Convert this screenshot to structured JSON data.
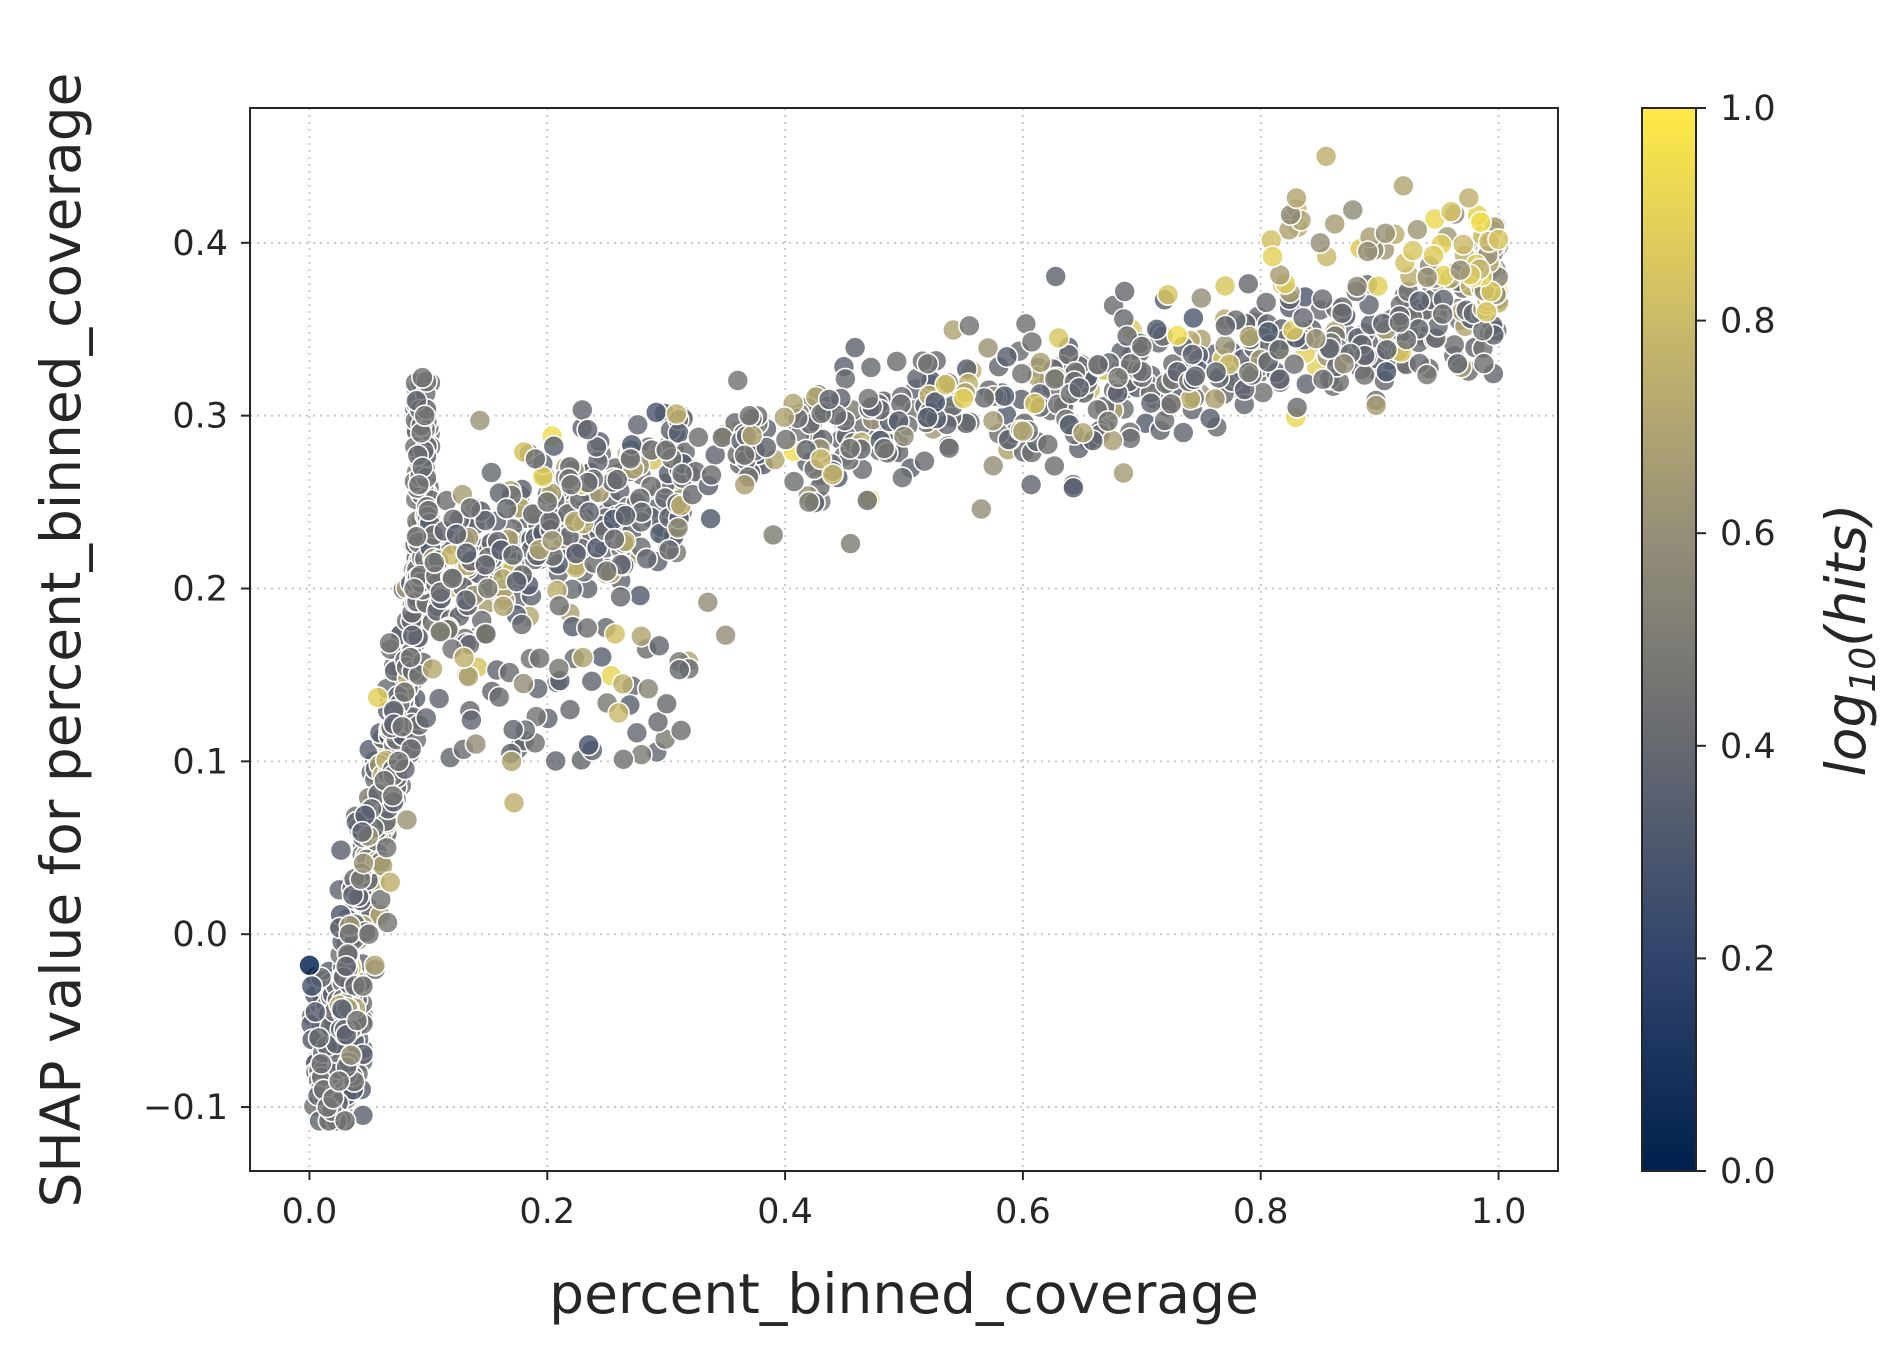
{
  "chart_data": {
    "type": "scatter",
    "title": "",
    "xlabel": "percent_binned_coverage",
    "ylabel": "SHAP value for percent_binned_coverage",
    "xlim": [
      -0.05,
      1.05
    ],
    "ylim": [
      -0.137,
      0.478
    ],
    "x_ticks": [
      "0.0",
      "0.2",
      "0.4",
      "0.6",
      "0.8",
      "1.0"
    ],
    "y_ticks": [
      "−0.1",
      "0.0",
      "0.1",
      "0.2",
      "0.3",
      "0.4"
    ],
    "grid": true,
    "grid_style": "dotted",
    "colorbar": {
      "label_base": "log",
      "label_sub": "10",
      "label_var": "hits",
      "range": [
        0.0,
        1.0
      ],
      "ticks": [
        "0.0",
        "0.2",
        "0.4",
        "0.6",
        "0.8",
        "1.0"
      ],
      "colormap_stops": [
        "#00204d",
        "#31446b",
        "#666970",
        "#958f78",
        "#cbba69",
        "#ffea46"
      ]
    },
    "point_edge_color": "#ffffff",
    "cluster_points": [
      [
        0.0,
        -0.018,
        0.0
      ],
      [
        0.002,
        -0.03,
        0.3
      ],
      [
        0.005,
        -0.045,
        0.35
      ],
      [
        0.008,
        -0.06,
        0.4
      ],
      [
        0.01,
        -0.075,
        0.42
      ],
      [
        0.012,
        -0.09,
        0.45
      ],
      [
        0.015,
        -0.1,
        0.45
      ],
      [
        0.02,
        -0.095,
        0.45
      ],
      [
        0.025,
        -0.085,
        0.45
      ],
      [
        0.03,
        -0.108,
        0.45
      ],
      [
        0.035,
        -0.07,
        0.6
      ],
      [
        0.04,
        -0.05,
        0.45
      ],
      [
        0.045,
        -0.03,
        0.45
      ],
      [
        0.05,
        0.0,
        0.45
      ],
      [
        0.055,
        -0.018,
        0.7
      ],
      [
        0.06,
        0.02,
        0.45
      ],
      [
        0.065,
        0.05,
        0.45
      ],
      [
        0.068,
        0.03,
        0.75
      ],
      [
        0.07,
        0.08,
        0.45
      ],
      [
        0.075,
        0.1,
        0.45
      ],
      [
        0.078,
        0.12,
        0.45
      ],
      [
        0.08,
        0.14,
        0.45
      ],
      [
        0.085,
        0.16,
        0.45
      ],
      [
        0.088,
        0.2,
        0.45
      ],
      [
        0.09,
        0.23,
        0.45
      ],
      [
        0.092,
        0.26,
        0.45
      ],
      [
        0.094,
        0.29,
        0.45
      ],
      [
        0.095,
        0.322,
        0.45
      ],
      [
        0.097,
        0.3,
        0.45
      ],
      [
        0.1,
        0.245,
        0.45
      ],
      [
        0.105,
        0.215,
        0.45
      ],
      [
        0.11,
        0.175,
        0.45
      ],
      [
        0.12,
        0.165,
        0.45
      ],
      [
        0.13,
        0.16,
        0.75
      ],
      [
        0.14,
        0.11,
        0.6
      ],
      [
        0.15,
        0.2,
        0.5
      ],
      [
        0.17,
        0.1,
        0.7
      ],
      [
        0.172,
        0.076,
        0.75
      ],
      [
        0.18,
        0.145,
        0.6
      ],
      [
        0.19,
        0.275,
        0.45
      ],
      [
        0.2,
        0.25,
        0.45
      ],
      [
        0.21,
        0.19,
        0.45
      ],
      [
        0.22,
        0.26,
        0.45
      ],
      [
        0.23,
        0.16,
        0.7
      ],
      [
        0.25,
        0.21,
        0.45
      ],
      [
        0.26,
        0.128,
        0.8
      ],
      [
        0.27,
        0.275,
        0.45
      ],
      [
        0.285,
        0.142,
        0.55
      ],
      [
        0.3,
        0.28,
        0.45
      ],
      [
        0.31,
        0.235,
        0.6
      ],
      [
        0.335,
        0.192,
        0.6
      ],
      [
        0.35,
        0.173,
        0.6
      ],
      [
        0.37,
        0.3,
        0.45
      ],
      [
        0.39,
        0.231,
        0.5
      ],
      [
        0.42,
        0.25,
        0.5
      ],
      [
        0.43,
        0.275,
        0.8
      ],
      [
        0.44,
        0.266,
        0.8
      ],
      [
        0.455,
        0.226,
        0.5
      ],
      [
        0.47,
        0.31,
        0.45
      ],
      [
        0.5,
        0.288,
        0.6
      ],
      [
        0.52,
        0.33,
        0.45
      ],
      [
        0.535,
        0.318,
        0.85
      ],
      [
        0.55,
        0.31,
        0.9
      ],
      [
        0.555,
        0.352,
        0.45
      ],
      [
        0.565,
        0.246,
        0.6
      ],
      [
        0.575,
        0.271,
        0.6
      ],
      [
        0.6,
        0.291,
        0.7
      ],
      [
        0.61,
        0.307,
        0.85
      ],
      [
        0.63,
        0.345,
        0.85
      ],
      [
        0.68,
        0.322,
        0.5
      ],
      [
        0.7,
        0.34,
        0.45
      ],
      [
        0.722,
        0.37,
        0.85
      ],
      [
        0.75,
        0.368,
        0.6
      ],
      [
        0.77,
        0.375,
        0.85
      ],
      [
        0.79,
        0.325,
        0.5
      ],
      [
        0.81,
        0.392,
        0.9
      ],
      [
        0.83,
        0.426,
        0.7
      ],
      [
        0.85,
        0.4,
        0.6
      ],
      [
        0.855,
        0.45,
        0.75
      ],
      [
        0.87,
        0.33,
        0.6
      ],
      [
        0.89,
        0.395,
        0.6
      ],
      [
        0.92,
        0.433,
        0.7
      ],
      [
        0.94,
        0.38,
        0.6
      ],
      [
        0.96,
        0.418,
        0.85
      ],
      [
        0.975,
        0.426,
        0.75
      ],
      [
        0.985,
        0.412,
        0.95
      ],
      [
        0.99,
        0.36,
        0.85
      ],
      [
        1.0,
        0.402,
        0.85
      ]
    ]
  }
}
